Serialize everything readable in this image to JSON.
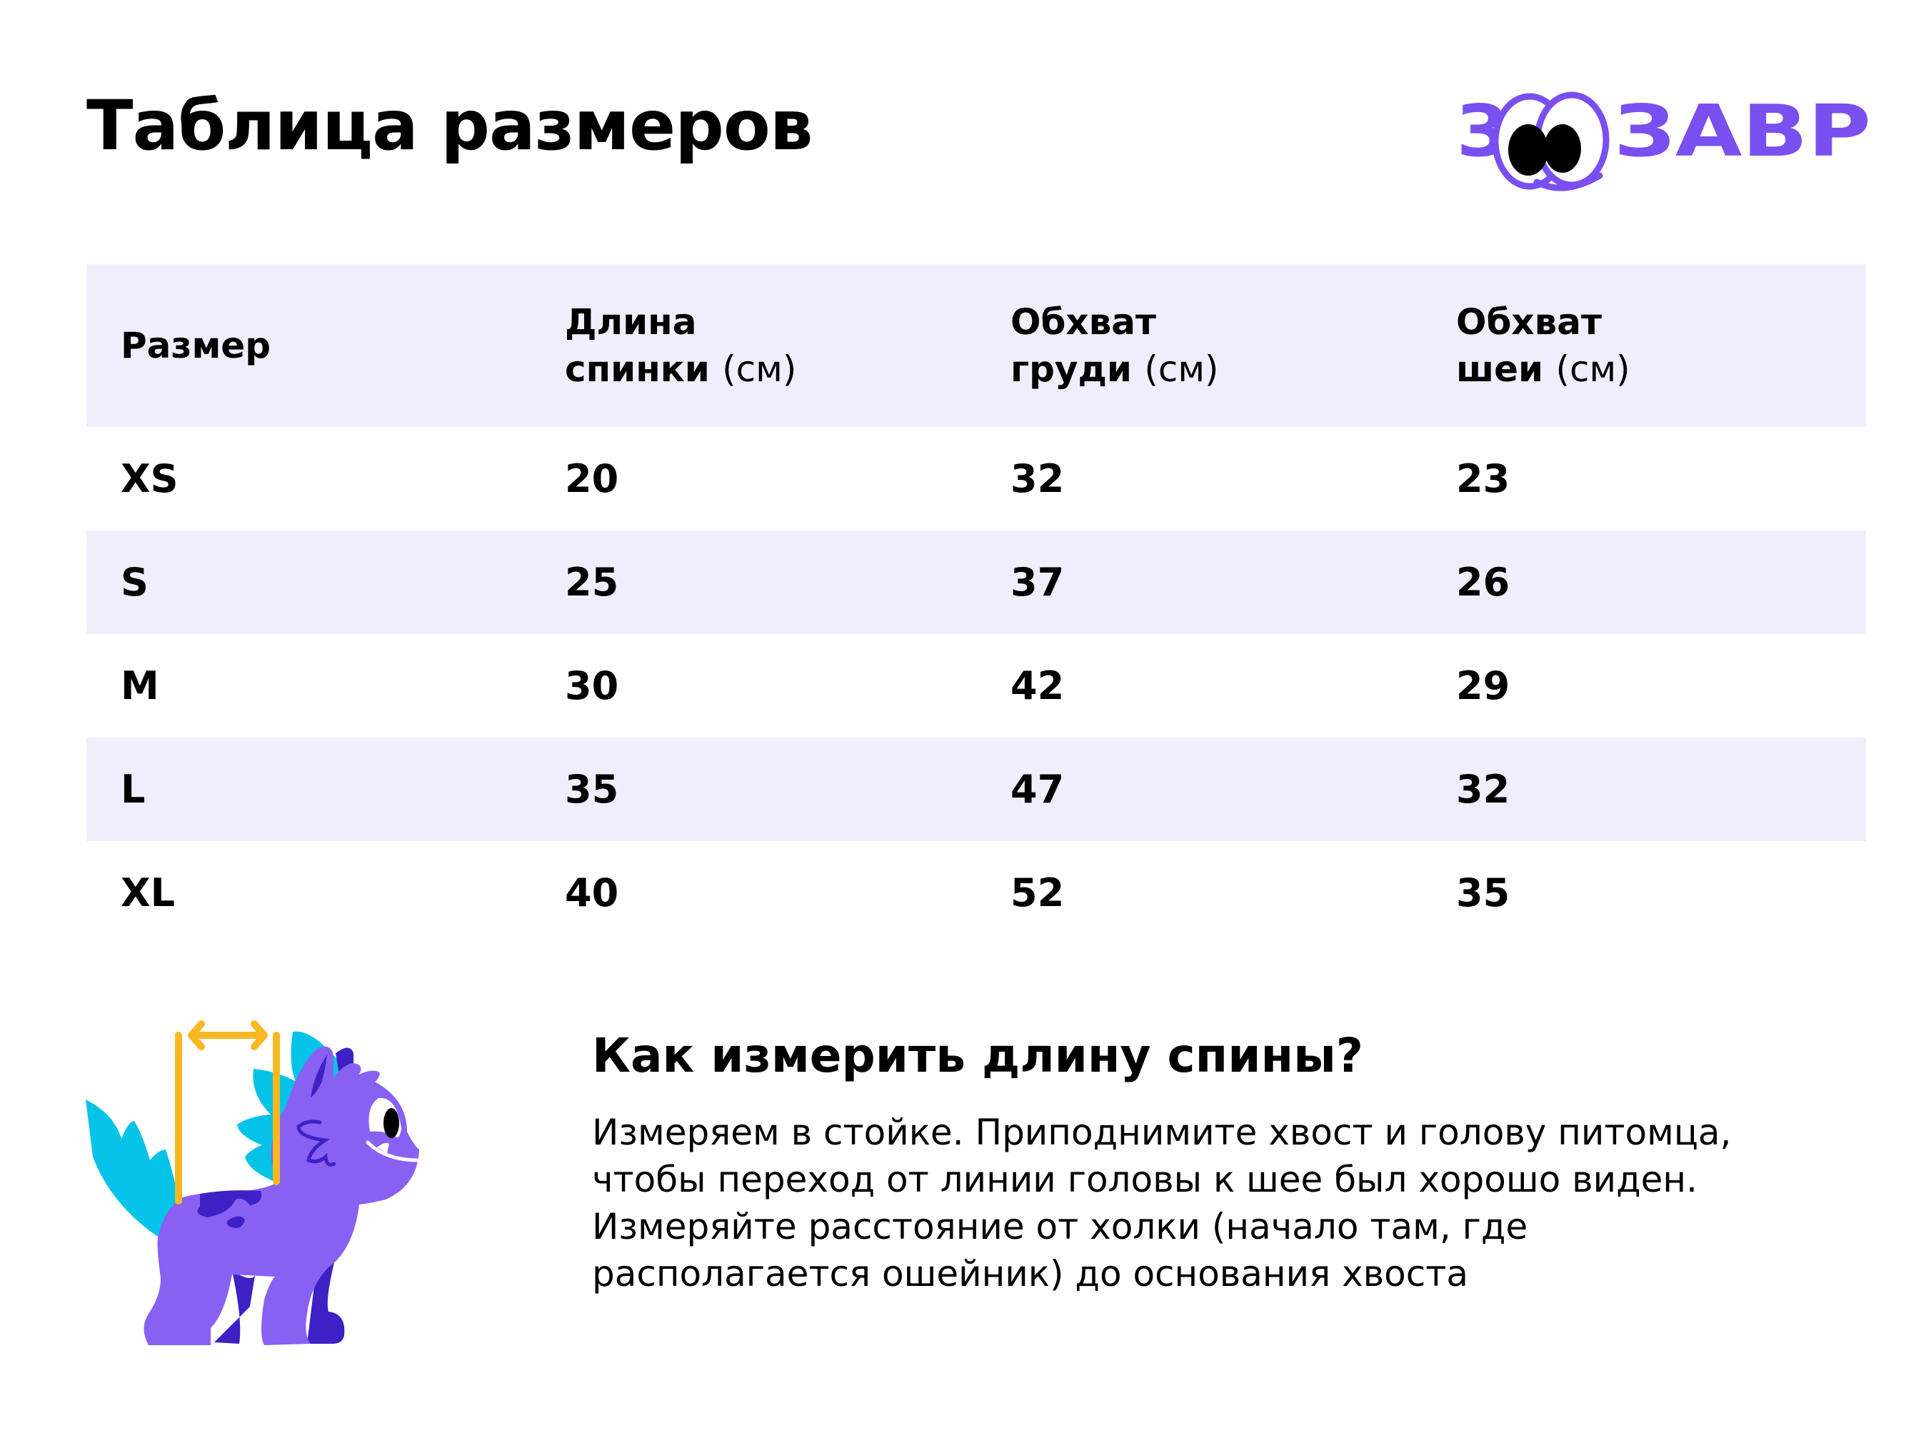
{
  "title": "Таблица размеров",
  "logo": {
    "text": "ЗООЗАВР",
    "color": "#7a4ff0"
  },
  "table": {
    "headers": [
      {
        "line1": "Размер",
        "line2": "",
        "unit": ""
      },
      {
        "line1": "Длина",
        "line2": "спинки",
        "unit": "(см)"
      },
      {
        "line1": "Обхват",
        "line2": "груди",
        "unit": "(см)"
      },
      {
        "line1": "Обхват",
        "line2": "шеи",
        "unit": "(см)"
      }
    ],
    "rows": [
      [
        "XS",
        "20",
        "32",
        "23"
      ],
      [
        "S",
        "25",
        "37",
        "26"
      ],
      [
        "M",
        "30",
        "42",
        "29"
      ],
      [
        "L",
        "35",
        "47",
        "32"
      ],
      [
        "XL",
        "40",
        "52",
        "35"
      ]
    ],
    "shade_color": "#f0eefc"
  },
  "howto": {
    "heading": "Как измерить длину спины?",
    "text": "Измеряем в стойке. Приподнимите хвост и голову питомца, чтобы переход от линии головы к шее был хорошо виден. Измеряйте расстояние от холки (начало там, где располагается ошейник) до основания хвоста"
  }
}
